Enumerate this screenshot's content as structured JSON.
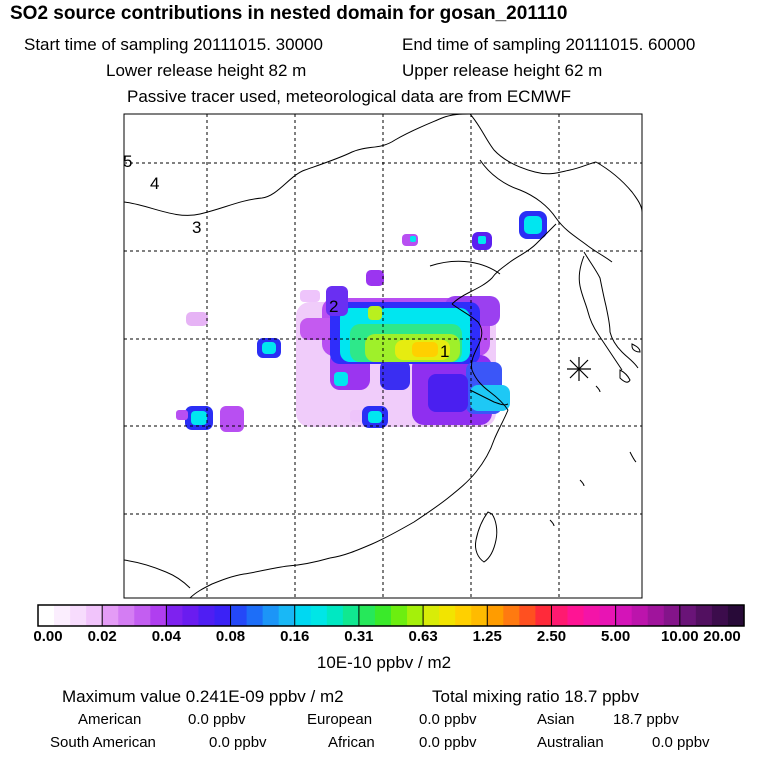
{
  "header": {
    "title": "SO2 source contributions in nested domain for gosan_201110",
    "start_label": "Start time of sampling 20111015. 30000",
    "end_label": "End time of sampling 20111015. 60000",
    "lower_label": "Lower release height   82 m",
    "upper_label": "Upper release height   62 m",
    "note": "Passive tracer used, meteorological data are from ECMWF"
  },
  "map": {
    "contour_labels": [
      "5",
      "4",
      "3",
      "2",
      "1"
    ],
    "receptor_icon": "asterisk-star-icon"
  },
  "colorbar": {
    "tick_labels": [
      "0.00",
      "0.02",
      "0.04",
      "0.08",
      "0.16",
      "0.31",
      "0.63",
      "1.25",
      "2.50",
      "5.00",
      "10.00",
      "20.00"
    ],
    "units": "10E-10 ppbv / m2"
  },
  "stats": {
    "max_value": "Maximum value  0.241E-09 ppbv / m2",
    "total_mixing": "Total mixing ratio      18.7 ppbv"
  },
  "regions": [
    {
      "name": "American",
      "value": "0.0 ppbv"
    },
    {
      "name": "European",
      "value": "0.0 ppbv"
    },
    {
      "name": "Asian",
      "value": "18.7 ppbv"
    },
    {
      "name": "South American",
      "value": "0.0 ppbv"
    },
    {
      "name": "African",
      "value": "0.0 ppbv"
    },
    {
      "name": "Australian",
      "value": "0.0 ppbv"
    }
  ],
  "colors": {
    "frame": "#000000",
    "grid": "#000000",
    "background": "#ffffff"
  }
}
